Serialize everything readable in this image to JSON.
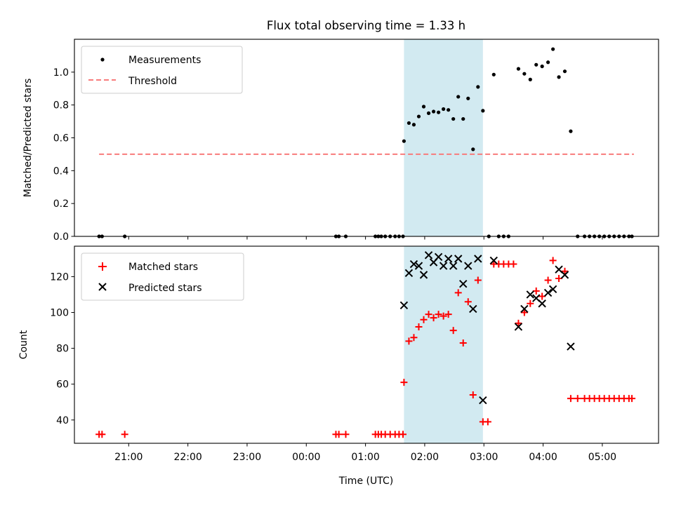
{
  "title": "Flux total observing time = 1.33 h",
  "chart_data": [
    {
      "panel": "top",
      "type": "scatter",
      "ylabel": "Matched/Predicted stars",
      "ylim": [
        0,
        1.2
      ],
      "yticks": [
        0.0,
        0.2,
        0.4,
        0.6,
        0.8,
        1.0
      ],
      "ytick_labels": [
        "0.0",
        "0.2",
        "0.4",
        "0.6",
        "0.8",
        "1.0"
      ],
      "legend": {
        "position": "top-left",
        "entries": [
          {
            "label": "Measurements",
            "marker": "dot",
            "color": "#000000"
          },
          {
            "label": "Threshold",
            "marker": "dashed-line",
            "color": "#f87b7b"
          }
        ]
      },
      "threshold": {
        "value": 0.5,
        "x_start": "20:30",
        "x_end": "05:32",
        "color": "#f87b7b"
      },
      "series": [
        {
          "name": "Measurements",
          "color": "#000000",
          "points": [
            [
              "20:30",
              0
            ],
            [
              "20:33",
              0
            ],
            [
              "20:56",
              0
            ],
            [
              "00:30",
              0
            ],
            [
              "00:33",
              0
            ],
            [
              "00:40",
              0
            ],
            [
              "01:10",
              0
            ],
            [
              "01:13",
              0
            ],
            [
              "01:16",
              0
            ],
            [
              "01:20",
              0
            ],
            [
              "01:25",
              0
            ],
            [
              "01:30",
              0
            ],
            [
              "01:34",
              0
            ],
            [
              "01:38",
              0
            ],
            [
              "01:39",
              0.58
            ],
            [
              "01:44",
              0.69
            ],
            [
              "01:49",
              0.68
            ],
            [
              "01:54",
              0.73
            ],
            [
              "01:59",
              0.79
            ],
            [
              "02:04",
              0.75
            ],
            [
              "02:09",
              0.76
            ],
            [
              "02:14",
              0.755
            ],
            [
              "02:19",
              0.775
            ],
            [
              "02:24",
              0.77
            ],
            [
              "02:29",
              0.715
            ],
            [
              "02:34",
              0.85
            ],
            [
              "02:39",
              0.715
            ],
            [
              "02:44",
              0.84
            ],
            [
              "02:49",
              0.53
            ],
            [
              "02:54",
              0.91
            ],
            [
              "02:59",
              0.765
            ],
            [
              "03:05",
              0
            ],
            [
              "03:10",
              0.985
            ],
            [
              "03:15",
              0
            ],
            [
              "03:20",
              0
            ],
            [
              "03:25",
              0
            ],
            [
              "03:35",
              1.02
            ],
            [
              "03:41",
              0.99
            ],
            [
              "03:47",
              0.955
            ],
            [
              "03:53",
              1.045
            ],
            [
              "03:59",
              1.035
            ],
            [
              "04:05",
              1.06
            ],
            [
              "04:10",
              1.14
            ],
            [
              "04:16",
              0.97
            ],
            [
              "04:22",
              1.005
            ],
            [
              "04:28",
              0.64
            ],
            [
              "04:35",
              0
            ],
            [
              "04:42",
              0
            ],
            [
              "04:47",
              0
            ],
            [
              "04:52",
              0
            ],
            [
              "04:57",
              0
            ],
            [
              "05:02",
              0
            ],
            [
              "05:07",
              0
            ],
            [
              "05:12",
              0
            ],
            [
              "05:17",
              0
            ],
            [
              "05:22",
              0
            ],
            [
              "05:27",
              0
            ],
            [
              "05:30",
              0
            ]
          ]
        }
      ]
    },
    {
      "panel": "bottom",
      "type": "scatter",
      "ylabel": "Count",
      "xlabel": "Time (UTC)",
      "ylim": [
        27,
        137
      ],
      "yticks": [
        40,
        60,
        80,
        100,
        120
      ],
      "ytick_labels": [
        "40",
        "60",
        "80",
        "100",
        "120"
      ],
      "xlim": [
        "20:05",
        "05:57"
      ],
      "xticks": [
        "21:00",
        "22:00",
        "23:00",
        "00:00",
        "01:00",
        "02:00",
        "03:00",
        "04:00",
        "05:00"
      ],
      "xtick_labels": [
        "21:00",
        "22:00",
        "23:00",
        "00:00",
        "01:00",
        "02:00",
        "03:00",
        "04:00",
        "05:00"
      ],
      "legend": {
        "position": "top-left",
        "entries": [
          {
            "label": "Matched stars",
            "marker": "plus",
            "color": "#ff0000"
          },
          {
            "label": "Predicted stars",
            "marker": "x",
            "color": "#000000"
          }
        ]
      },
      "series": [
        {
          "name": "Matched stars",
          "color": "#ff0000",
          "marker": "plus",
          "points": [
            [
              "20:30",
              32
            ],
            [
              "20:33",
              32
            ],
            [
              "20:56",
              32
            ],
            [
              "00:30",
              32
            ],
            [
              "00:33",
              32
            ],
            [
              "00:40",
              32
            ],
            [
              "01:10",
              32
            ],
            [
              "01:13",
              32
            ],
            [
              "01:16",
              32
            ],
            [
              "01:20",
              32
            ],
            [
              "01:25",
              32
            ],
            [
              "01:30",
              32
            ],
            [
              "01:34",
              32
            ],
            [
              "01:38",
              32
            ],
            [
              "01:39",
              61
            ],
            [
              "01:44",
              84
            ],
            [
              "01:49",
              86
            ],
            [
              "01:54",
              92
            ],
            [
              "01:59",
              96
            ],
            [
              "02:04",
              99
            ],
            [
              "02:09",
              97
            ],
            [
              "02:14",
              99
            ],
            [
              "02:19",
              98
            ],
            [
              "02:24",
              99
            ],
            [
              "02:29",
              90
            ],
            [
              "02:34",
              111
            ],
            [
              "02:39",
              83
            ],
            [
              "02:44",
              106
            ],
            [
              "02:49",
              54
            ],
            [
              "02:54",
              118
            ],
            [
              "02:59",
              39
            ],
            [
              "03:04",
              39
            ],
            [
              "03:10",
              127
            ],
            [
              "03:15",
              127
            ],
            [
              "03:20",
              127
            ],
            [
              "03:25",
              127
            ],
            [
              "03:30",
              127
            ],
            [
              "03:35",
              94
            ],
            [
              "03:41",
              100
            ],
            [
              "03:47",
              105
            ],
            [
              "03:53",
              112
            ],
            [
              "03:59",
              109
            ],
            [
              "04:05",
              118
            ],
            [
              "04:10",
              129
            ],
            [
              "04:16",
              119
            ],
            [
              "04:22",
              123
            ],
            [
              "04:28",
              52
            ],
            [
              "04:35",
              52
            ],
            [
              "04:42",
              52
            ],
            [
              "04:47",
              52
            ],
            [
              "04:52",
              52
            ],
            [
              "04:57",
              52
            ],
            [
              "05:02",
              52
            ],
            [
              "05:07",
              52
            ],
            [
              "05:12",
              52
            ],
            [
              "05:17",
              52
            ],
            [
              "05:22",
              52
            ],
            [
              "05:27",
              52
            ],
            [
              "05:30",
              52
            ]
          ]
        },
        {
          "name": "Predicted stars",
          "color": "#000000",
          "marker": "x",
          "points": [
            [
              "01:39",
              104
            ],
            [
              "01:44",
              122
            ],
            [
              "01:49",
              127
            ],
            [
              "01:54",
              126
            ],
            [
              "01:59",
              121
            ],
            [
              "02:04",
              132
            ],
            [
              "02:09",
              128
            ],
            [
              "02:14",
              131
            ],
            [
              "02:19",
              126
            ],
            [
              "02:24",
              130
            ],
            [
              "02:29",
              126
            ],
            [
              "02:34",
              130
            ],
            [
              "02:39",
              116
            ],
            [
              "02:44",
              126
            ],
            [
              "02:49",
              102
            ],
            [
              "02:54",
              130
            ],
            [
              "02:59",
              51
            ],
            [
              "03:10",
              129
            ],
            [
              "03:35",
              92
            ],
            [
              "03:41",
              102
            ],
            [
              "03:47",
              110
            ],
            [
              "03:53",
              108
            ],
            [
              "03:59",
              105
            ],
            [
              "04:05",
              111
            ],
            [
              "04:10",
              113
            ],
            [
              "04:16",
              124
            ],
            [
              "04:22",
              121
            ],
            [
              "04:28",
              81
            ]
          ]
        }
      ]
    }
  ],
  "shaded_region": {
    "x_start": "01:39",
    "x_end": "02:59",
    "color": "#add8e6"
  }
}
